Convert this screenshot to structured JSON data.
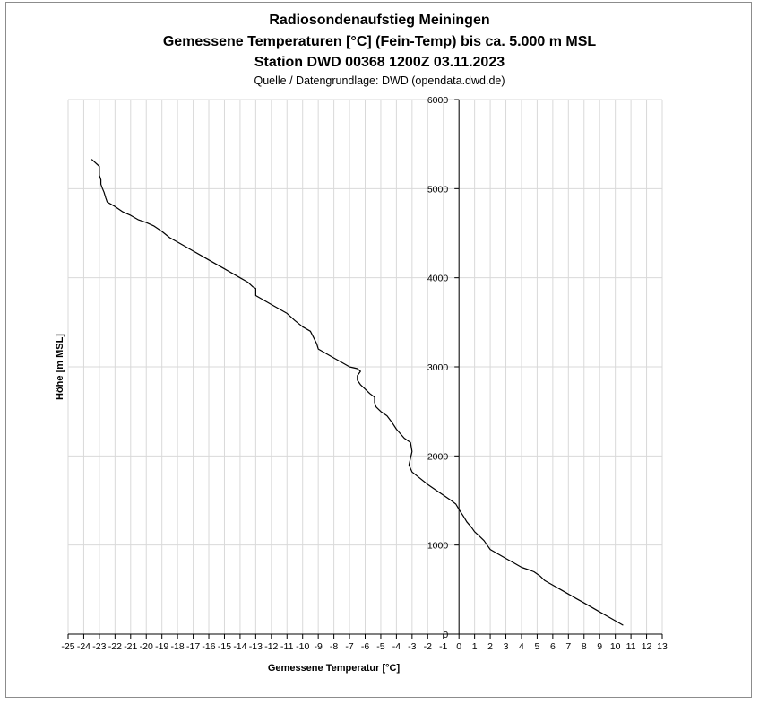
{
  "chart_data": {
    "type": "line",
    "title": "Radiosondenaufstieg Meiningen",
    "subtitle_1": "Gemessene Temperaturen [°C] (Fein-Temp) bis ca. 5.000 m MSL",
    "subtitle_2": "Station DWD 00368 1200Z 03.11.2023",
    "source": "Quelle / Datengrundlage: DWD (opendata.dwd.de)",
    "xlabel": "Gemessene Temperatur [°C]",
    "ylabel": "Höhe [m MSL]",
    "xlim": [
      -25,
      13
    ],
    "ylim": [
      0,
      6000
    ],
    "x_ticks": [
      -25,
      -24,
      -23,
      -22,
      -21,
      -20,
      -19,
      -18,
      -17,
      -16,
      -15,
      -14,
      -13,
      -12,
      -11,
      -10,
      -9,
      -8,
      -7,
      -6,
      -5,
      -4,
      -3,
      -2,
      -1,
      0,
      1,
      2,
      3,
      4,
      5,
      6,
      7,
      8,
      9,
      10,
      11,
      12,
      13
    ],
    "y_ticks": [
      0,
      1000,
      2000,
      3000,
      4000,
      5000,
      6000
    ],
    "grid": true,
    "series": [
      {
        "color": "#000000",
        "x": [
          10.5,
          10.0,
          9.5,
          9.0,
          8.5,
          8.0,
          7.5,
          7.0,
          6.5,
          6.0,
          5.5,
          5.2,
          4.8,
          4.5,
          4.0,
          3.8,
          3.5,
          3.0,
          2.5,
          2.0,
          1.8,
          1.6,
          1.3,
          1.0,
          0.8,
          0.5,
          0.3,
          0.0,
          -0.2,
          -0.5,
          -1.0,
          -1.5,
          -2.0,
          -2.5,
          -3.0,
          -3.2,
          -3.0,
          -3.1,
          -3.5,
          -4.0,
          -4.3,
          -4.6,
          -5.0,
          -5.3,
          -5.4,
          -5.4,
          -5.7,
          -6.0,
          -6.3,
          -6.5,
          -6.5,
          -6.3,
          -6.5,
          -7.0,
          -7.5,
          -8.0,
          -8.5,
          -9.0,
          -9.1,
          -9.3,
          -9.5,
          -10.0,
          -10.5,
          -11.0,
          -11.5,
          -12.0,
          -12.5,
          -13.0,
          -13.0,
          -13.2,
          -13.5,
          -14.0,
          -14.5,
          -15.0,
          -15.5,
          -16.0,
          -16.5,
          -17.0,
          -17.5,
          -18.0,
          -18.5,
          -19.0,
          -19.5,
          -20.0,
          -20.5,
          -21.0,
          -21.5,
          -22.0,
          -22.5,
          -22.6,
          -22.7,
          -22.8,
          -22.9,
          -22.9,
          -23.0,
          -23.0,
          -23.5
        ],
        "y": [
          100,
          150,
          200,
          250,
          300,
          350,
          400,
          450,
          500,
          550,
          600,
          650,
          700,
          720,
          750,
          770,
          800,
          850,
          900,
          950,
          1000,
          1050,
          1100,
          1150,
          1200,
          1260,
          1320,
          1400,
          1460,
          1500,
          1560,
          1620,
          1680,
          1750,
          1820,
          1900,
          2050,
          2150,
          2200,
          2300,
          2380,
          2450,
          2500,
          2550,
          2600,
          2660,
          2700,
          2750,
          2800,
          2850,
          2900,
          2950,
          2980,
          3000,
          3050,
          3100,
          3150,
          3200,
          3260,
          3330,
          3400,
          3450,
          3520,
          3600,
          3650,
          3700,
          3750,
          3800,
          3880,
          3900,
          3950,
          4000,
          4050,
          4100,
          4150,
          4200,
          4250,
          4300,
          4350,
          4400,
          4450,
          4520,
          4580,
          4620,
          4650,
          4700,
          4740,
          4800,
          4850,
          4900,
          4960,
          5000,
          5050,
          5100,
          5150,
          5250,
          5330
        ]
      }
    ]
  }
}
